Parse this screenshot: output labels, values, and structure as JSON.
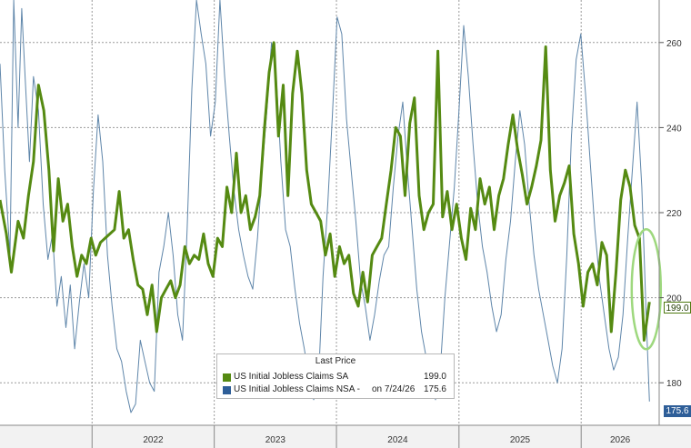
{
  "chart_data": {
    "type": "line",
    "xlabel": "",
    "ylabel": "",
    "x_ticks": [
      "2022",
      "2023",
      "2024",
      "2025",
      "2026"
    ],
    "y_ticks": [
      180,
      200,
      220,
      240,
      260
    ],
    "ylim": [
      170,
      270
    ],
    "xlim": [
      "2021-04-01",
      "2026-08-22"
    ],
    "grid": true,
    "legend": {
      "position": "bottom-center",
      "title": "Last Price",
      "entries": [
        {
          "label": "US Initial Jobless Claims SA",
          "note": "",
          "value": "199.0"
        },
        {
          "label": "US Initial Jobless Claims NSA -",
          "note": "on 7/24/26",
          "value": "175.6"
        }
      ]
    },
    "last_values": {
      "sa": "199.0",
      "nsa": "175.6"
    },
    "highlight": {
      "shape": "ellipse",
      "color": "#9ed87e"
    },
    "series": [
      {
        "name": "US Initial Jobless Claims SA",
        "color": "#558a12",
        "points": [
          [
            "2021-04-01",
            223
          ],
          [
            "2021-04-20",
            215
          ],
          [
            "2021-05-05",
            206
          ],
          [
            "2021-05-25",
            218
          ],
          [
            "2021-06-10",
            214
          ],
          [
            "2021-06-25",
            224
          ],
          [
            "2021-07-10",
            232
          ],
          [
            "2021-07-25",
            250
          ],
          [
            "2021-08-10",
            244
          ],
          [
            "2021-08-25",
            230
          ],
          [
            "2021-09-08",
            211
          ],
          [
            "2021-09-22",
            228
          ],
          [
            "2021-10-06",
            218
          ],
          [
            "2021-10-20",
            222
          ],
          [
            "2021-11-03",
            212
          ],
          [
            "2021-11-17",
            205
          ],
          [
            "2021-12-01",
            210
          ],
          [
            "2021-12-15",
            208
          ],
          [
            "2021-12-29",
            214
          ],
          [
            "2022-01-12",
            210
          ],
          [
            "2022-01-26",
            213
          ],
          [
            "2022-02-09",
            214
          ],
          [
            "2022-02-23",
            215
          ],
          [
            "2022-03-09",
            216
          ],
          [
            "2022-03-23",
            225
          ],
          [
            "2022-04-06",
            214
          ],
          [
            "2022-04-20",
            216
          ],
          [
            "2022-05-04",
            209
          ],
          [
            "2022-05-18",
            203
          ],
          [
            "2022-06-01",
            202
          ],
          [
            "2022-06-15",
            196
          ],
          [
            "2022-06-29",
            203
          ],
          [
            "2022-07-13",
            192
          ],
          [
            "2022-07-27",
            200
          ],
          [
            "2022-08-10",
            202
          ],
          [
            "2022-08-24",
            204
          ],
          [
            "2022-09-07",
            200
          ],
          [
            "2022-09-21",
            203
          ],
          [
            "2022-10-05",
            212
          ],
          [
            "2022-10-19",
            208
          ],
          [
            "2022-11-02",
            210
          ],
          [
            "2022-11-16",
            209
          ],
          [
            "2022-11-30",
            215
          ],
          [
            "2022-12-14",
            208
          ],
          [
            "2022-12-28",
            205
          ],
          [
            "2023-01-11",
            214
          ],
          [
            "2023-01-25",
            212
          ],
          [
            "2023-02-08",
            226
          ],
          [
            "2023-02-22",
            220
          ],
          [
            "2023-03-08",
            234
          ],
          [
            "2023-03-22",
            220
          ],
          [
            "2023-04-05",
            224
          ],
          [
            "2023-04-19",
            216
          ],
          [
            "2023-05-03",
            219
          ],
          [
            "2023-05-17",
            224
          ],
          [
            "2023-05-31",
            240
          ],
          [
            "2023-06-14",
            253
          ],
          [
            "2023-06-28",
            260
          ],
          [
            "2023-07-12",
            238
          ],
          [
            "2023-07-26",
            250
          ],
          [
            "2023-08-09",
            224
          ],
          [
            "2023-08-23",
            248
          ],
          [
            "2023-09-06",
            258
          ],
          [
            "2023-09-20",
            248
          ],
          [
            "2023-10-04",
            230
          ],
          [
            "2023-10-18",
            222
          ],
          [
            "2023-11-01",
            220
          ],
          [
            "2023-11-15",
            218
          ],
          [
            "2023-11-29",
            210
          ],
          [
            "2023-12-13",
            215
          ],
          [
            "2023-12-27",
            205
          ],
          [
            "2024-01-10",
            212
          ],
          [
            "2024-01-24",
            208
          ],
          [
            "2024-02-07",
            210
          ],
          [
            "2024-02-21",
            201
          ],
          [
            "2024-03-06",
            198
          ],
          [
            "2024-03-20",
            206
          ],
          [
            "2024-04-03",
            199
          ],
          [
            "2024-04-17",
            210
          ],
          [
            "2024-05-01",
            212
          ],
          [
            "2024-05-15",
            214
          ],
          [
            "2024-05-29",
            222
          ],
          [
            "2024-06-12",
            230
          ],
          [
            "2024-06-26",
            240
          ],
          [
            "2024-07-10",
            238
          ],
          [
            "2024-07-24",
            224
          ],
          [
            "2024-08-07",
            241
          ],
          [
            "2024-08-21",
            247
          ],
          [
            "2024-09-04",
            224
          ],
          [
            "2024-09-18",
            216
          ],
          [
            "2024-10-02",
            220
          ],
          [
            "2024-10-16",
            222
          ],
          [
            "2024-10-30",
            258
          ],
          [
            "2024-11-13",
            219
          ],
          [
            "2024-11-27",
            225
          ],
          [
            "2024-12-11",
            216
          ],
          [
            "2024-12-25",
            222
          ],
          [
            "2025-01-08",
            214
          ],
          [
            "2025-01-22",
            209
          ],
          [
            "2025-02-05",
            221
          ],
          [
            "2025-02-19",
            216
          ],
          [
            "2025-03-05",
            228
          ],
          [
            "2025-03-19",
            222
          ],
          [
            "2025-04-02",
            226
          ],
          [
            "2025-04-16",
            216
          ],
          [
            "2025-04-30",
            224
          ],
          [
            "2025-05-14",
            228
          ],
          [
            "2025-05-28",
            236
          ],
          [
            "2025-06-11",
            243
          ],
          [
            "2025-06-25",
            235
          ],
          [
            "2025-07-09",
            229
          ],
          [
            "2025-07-23",
            222
          ],
          [
            "2025-08-06",
            226
          ],
          [
            "2025-08-20",
            231
          ],
          [
            "2025-09-03",
            237
          ],
          [
            "2025-09-17",
            259
          ],
          [
            "2025-10-01",
            230
          ],
          [
            "2025-10-15",
            218
          ],
          [
            "2025-10-29",
            224
          ],
          [
            "2025-11-12",
            227
          ],
          [
            "2025-11-26",
            231
          ],
          [
            "2025-12-10",
            215
          ],
          [
            "2025-12-24",
            208
          ],
          [
            "2026-01-07",
            198
          ],
          [
            "2026-01-21",
            206
          ],
          [
            "2026-02-04",
            208
          ],
          [
            "2026-02-18",
            203
          ],
          [
            "2026-03-04",
            213
          ],
          [
            "2026-03-18",
            210
          ],
          [
            "2026-04-01",
            192
          ],
          [
            "2026-04-15",
            206
          ],
          [
            "2026-04-29",
            223
          ],
          [
            "2026-05-13",
            230
          ],
          [
            "2026-05-27",
            226
          ],
          [
            "2026-06-10",
            217
          ],
          [
            "2026-06-24",
            214
          ],
          [
            "2026-07-08",
            190
          ],
          [
            "2026-07-22",
            198
          ],
          [
            "2026-07-24",
            199.0
          ]
        ]
      },
      {
        "name": "US Initial Jobless Claims NSA -",
        "color": "#5f86aa",
        "points": [
          [
            "2021-04-01",
            255
          ],
          [
            "2021-04-15",
            230
          ],
          [
            "2021-05-01",
            210
          ],
          [
            "2021-05-12",
            270
          ],
          [
            "2021-05-25",
            240
          ],
          [
            "2021-06-05",
            268
          ],
          [
            "2021-06-15",
            252
          ],
          [
            "2021-06-28",
            232
          ],
          [
            "2021-07-10",
            252
          ],
          [
            "2021-07-25",
            244
          ],
          [
            "2021-08-08",
            222
          ],
          [
            "2021-08-22",
            209
          ],
          [
            "2021-09-05",
            215
          ],
          [
            "2021-09-18",
            198
          ],
          [
            "2021-10-01",
            205
          ],
          [
            "2021-10-15",
            193
          ],
          [
            "2021-10-28",
            203
          ],
          [
            "2021-11-10",
            188
          ],
          [
            "2021-11-24",
            199
          ],
          [
            "2021-12-08",
            208
          ],
          [
            "2021-12-22",
            200
          ],
          [
            "2022-01-05",
            225
          ],
          [
            "2022-01-19",
            243
          ],
          [
            "2022-02-02",
            232
          ],
          [
            "2022-02-16",
            210
          ],
          [
            "2022-03-02",
            198
          ],
          [
            "2022-03-16",
            188
          ],
          [
            "2022-03-30",
            185
          ],
          [
            "2022-04-13",
            178
          ],
          [
            "2022-04-27",
            173
          ],
          [
            "2022-05-11",
            175
          ],
          [
            "2022-05-25",
            190
          ],
          [
            "2022-06-08",
            185
          ],
          [
            "2022-06-22",
            180
          ],
          [
            "2022-07-06",
            178
          ],
          [
            "2022-07-20",
            206
          ],
          [
            "2022-08-03",
            212
          ],
          [
            "2022-08-17",
            220
          ],
          [
            "2022-08-31",
            210
          ],
          [
            "2022-09-14",
            196
          ],
          [
            "2022-09-28",
            190
          ],
          [
            "2022-10-12",
            216
          ],
          [
            "2022-10-26",
            249
          ],
          [
            "2022-11-09",
            270
          ],
          [
            "2022-11-23",
            262
          ],
          [
            "2022-12-07",
            255
          ],
          [
            "2022-12-21",
            238
          ],
          [
            "2023-01-04",
            246
          ],
          [
            "2023-01-18",
            270
          ],
          [
            "2023-02-01",
            252
          ],
          [
            "2023-02-15",
            238
          ],
          [
            "2023-03-01",
            225
          ],
          [
            "2023-03-15",
            216
          ],
          [
            "2023-03-29",
            210
          ],
          [
            "2023-04-12",
            205
          ],
          [
            "2023-04-26",
            202
          ],
          [
            "2023-05-10",
            214
          ],
          [
            "2023-05-24",
            230
          ],
          [
            "2023-06-07",
            244
          ],
          [
            "2023-06-21",
            260
          ],
          [
            "2023-07-05",
            252
          ],
          [
            "2023-07-19",
            232
          ],
          [
            "2023-08-02",
            216
          ],
          [
            "2023-08-16",
            212
          ],
          [
            "2023-08-30",
            202
          ],
          [
            "2023-09-13",
            194
          ],
          [
            "2023-09-27",
            188
          ],
          [
            "2023-10-11",
            181
          ],
          [
            "2023-10-25",
            176
          ],
          [
            "2023-11-08",
            180
          ],
          [
            "2023-11-22",
            205
          ],
          [
            "2023-12-06",
            222
          ],
          [
            "2023-12-20",
            243
          ],
          [
            "2024-01-03",
            266
          ],
          [
            "2024-01-17",
            262
          ],
          [
            "2024-01-31",
            242
          ],
          [
            "2024-02-14",
            230
          ],
          [
            "2024-02-28",
            218
          ],
          [
            "2024-03-13",
            204
          ],
          [
            "2024-03-27",
            198
          ],
          [
            "2024-04-10",
            190
          ],
          [
            "2024-04-24",
            196
          ],
          [
            "2024-05-08",
            204
          ],
          [
            "2024-05-22",
            210
          ],
          [
            "2024-06-05",
            212
          ],
          [
            "2024-06-19",
            226
          ],
          [
            "2024-07-03",
            238
          ],
          [
            "2024-07-17",
            246
          ],
          [
            "2024-07-31",
            230
          ],
          [
            "2024-08-14",
            216
          ],
          [
            "2024-08-28",
            202
          ],
          [
            "2024-09-11",
            192
          ],
          [
            "2024-09-25",
            186
          ],
          [
            "2024-10-09",
            181
          ],
          [
            "2024-10-23",
            176
          ],
          [
            "2024-11-06",
            183
          ],
          [
            "2024-11-20",
            200
          ],
          [
            "2024-12-04",
            213
          ],
          [
            "2024-12-18",
            226
          ],
          [
            "2025-01-01",
            244
          ],
          [
            "2025-01-15",
            264
          ],
          [
            "2025-01-29",
            252
          ],
          [
            "2025-02-12",
            236
          ],
          [
            "2025-02-26",
            222
          ],
          [
            "2025-03-12",
            212
          ],
          [
            "2025-03-26",
            206
          ],
          [
            "2025-04-09",
            198
          ],
          [
            "2025-04-23",
            192
          ],
          [
            "2025-05-07",
            196
          ],
          [
            "2025-05-21",
            209
          ],
          [
            "2025-06-04",
            218
          ],
          [
            "2025-06-18",
            232
          ],
          [
            "2025-07-02",
            244
          ],
          [
            "2025-07-16",
            236
          ],
          [
            "2025-07-30",
            222
          ],
          [
            "2025-08-13",
            210
          ],
          [
            "2025-08-27",
            202
          ],
          [
            "2025-09-10",
            196
          ],
          [
            "2025-09-24",
            190
          ],
          [
            "2025-10-08",
            184
          ],
          [
            "2025-10-22",
            180
          ],
          [
            "2025-11-05",
            188
          ],
          [
            "2025-11-19",
            210
          ],
          [
            "2025-12-03",
            238
          ],
          [
            "2025-12-17",
            256
          ],
          [
            "2025-12-31",
            262
          ],
          [
            "2026-01-14",
            248
          ],
          [
            "2026-01-28",
            232
          ],
          [
            "2026-02-11",
            216
          ],
          [
            "2026-02-25",
            204
          ],
          [
            "2026-03-11",
            196
          ],
          [
            "2026-03-25",
            188
          ],
          [
            "2026-04-08",
            183
          ],
          [
            "2026-04-22",
            186
          ],
          [
            "2026-05-06",
            196
          ],
          [
            "2026-05-20",
            214
          ],
          [
            "2026-06-03",
            230
          ],
          [
            "2026-06-17",
            246
          ],
          [
            "2026-07-01",
            226
          ],
          [
            "2026-07-15",
            194
          ],
          [
            "2026-07-24",
            175.6
          ]
        ]
      }
    ]
  }
}
